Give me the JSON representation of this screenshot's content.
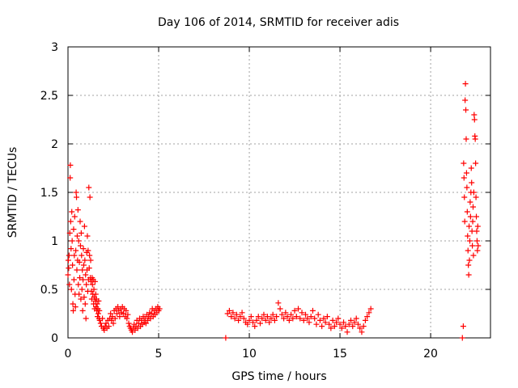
{
  "chart_data": {
    "type": "scatter",
    "title": "Day 106 of 2014, SRMTID for receiver adis",
    "xlabel": "GPS time / hours",
    "ylabel": "SRMTID / TECUs",
    "xlim": [
      0,
      23.3
    ],
    "ylim": [
      0,
      3
    ],
    "x_ticks": [
      0,
      5,
      10,
      15,
      20
    ],
    "y_ticks": [
      0,
      0.5,
      1,
      1.5,
      2,
      2.5,
      3
    ],
    "x_tick_labels": [
      "0",
      "5",
      "10",
      "15",
      "20"
    ],
    "y_tick_labels": [
      "0",
      "0.5",
      "1",
      "1.5",
      "2",
      "2.5",
      "3"
    ],
    "grid": true,
    "marker": "+",
    "marker_color": "#ff0000",
    "series": [
      {
        "name": "SRMTID",
        "points": [
          [
            0.0,
            0.65
          ],
          [
            0.02,
            0.8
          ],
          [
            0.04,
            0.72
          ],
          [
            0.06,
            0.85
          ],
          [
            0.08,
            0.55
          ],
          [
            0.1,
            1.08
          ],
          [
            0.12,
            1.65
          ],
          [
            0.13,
            1.78
          ],
          [
            0.15,
            1.2
          ],
          [
            0.17,
            0.92
          ],
          [
            0.19,
            0.5
          ],
          [
            0.21,
            1.3
          ],
          [
            0.23,
            1.0
          ],
          [
            0.25,
            0.75
          ],
          [
            0.27,
            0.35
          ],
          [
            0.29,
            0.28
          ],
          [
            0.31,
            1.12
          ],
          [
            0.33,
            0.6
          ],
          [
            0.35,
            0.85
          ],
          [
            0.37,
            1.25
          ],
          [
            0.39,
            0.45
          ],
          [
            0.41,
            0.32
          ],
          [
            0.43,
            0.9
          ],
          [
            0.45,
            1.5
          ],
          [
            0.47,
            1.45
          ],
          [
            0.49,
            0.7
          ],
          [
            0.51,
            1.05
          ],
          [
            0.53,
            0.8
          ],
          [
            0.55,
            1.32
          ],
          [
            0.57,
            0.55
          ],
          [
            0.59,
            1.0
          ],
          [
            0.61,
            0.45
          ],
          [
            0.63,
            0.78
          ],
          [
            0.65,
            0.62
          ],
          [
            0.67,
            1.2
          ],
          [
            0.69,
            0.95
          ],
          [
            0.71,
            0.4
          ],
          [
            0.73,
            1.08
          ],
          [
            0.75,
            0.85
          ],
          [
            0.77,
            0.5
          ],
          [
            0.79,
            0.7
          ],
          [
            0.81,
            0.28
          ],
          [
            0.83,
            0.6
          ],
          [
            0.85,
            0.92
          ],
          [
            0.87,
            0.75
          ],
          [
            0.89,
            0.42
          ],
          [
            0.91,
            1.15
          ],
          [
            0.93,
            0.8
          ],
          [
            0.95,
            0.35
          ],
          [
            0.97,
            0.65
          ],
          [
            0.99,
            0.2
          ],
          [
            1.01,
            0.55
          ],
          [
            1.03,
            0.88
          ],
          [
            1.05,
            0.7
          ],
          [
            1.07,
            1.05
          ],
          [
            1.09,
            0.48
          ],
          [
            1.11,
            0.9
          ],
          [
            1.13,
            0.6
          ],
          [
            1.15,
            1.55
          ],
          [
            1.17,
            0.72
          ],
          [
            1.19,
            0.85
          ],
          [
            1.21,
            1.45
          ],
          [
            1.23,
            0.62
          ],
          [
            1.25,
            0.8
          ],
          [
            1.27,
            0.58
          ],
          [
            1.29,
            0.48
          ],
          [
            1.31,
            0.4
          ],
          [
            1.33,
            0.62
          ],
          [
            1.35,
            0.55
          ],
          [
            1.37,
            0.45
          ],
          [
            1.39,
            0.6
          ],
          [
            1.41,
            0.35
          ],
          [
            1.43,
            0.5
          ],
          [
            1.45,
            0.42
          ],
          [
            1.47,
            0.3
          ],
          [
            1.49,
            0.58
          ],
          [
            1.51,
            0.38
          ],
          [
            1.53,
            0.45
          ],
          [
            1.55,
            0.32
          ],
          [
            1.57,
            0.4
          ],
          [
            1.59,
            0.28
          ],
          [
            1.61,
            0.35
          ],
          [
            1.63,
            0.22
          ],
          [
            1.65,
            0.3
          ],
          [
            1.67,
            0.25
          ],
          [
            1.69,
            0.38
          ],
          [
            1.71,
            0.2
          ],
          [
            1.73,
            0.28
          ],
          [
            1.75,
            0.18
          ],
          [
            1.8,
            0.15
          ],
          [
            1.85,
            0.12
          ],
          [
            1.9,
            0.2
          ],
          [
            1.95,
            0.1
          ],
          [
            2.0,
            0.08
          ],
          [
            2.05,
            0.12
          ],
          [
            2.1,
            0.15
          ],
          [
            2.15,
            0.1
          ],
          [
            2.2,
            0.18
          ],
          [
            2.25,
            0.12
          ],
          [
            2.3,
            0.2
          ],
          [
            2.35,
            0.25
          ],
          [
            2.4,
            0.18
          ],
          [
            2.45,
            0.22
          ],
          [
            2.5,
            0.15
          ],
          [
            2.55,
            0.28
          ],
          [
            2.6,
            0.2
          ],
          [
            2.65,
            0.3
          ],
          [
            2.7,
            0.25
          ],
          [
            2.75,
            0.32
          ],
          [
            2.8,
            0.28
          ],
          [
            2.85,
            0.22
          ],
          [
            2.9,
            0.3
          ],
          [
            2.95,
            0.26
          ],
          [
            3.0,
            0.32
          ],
          [
            3.05,
            0.25
          ],
          [
            3.1,
            0.3
          ],
          [
            3.15,
            0.22
          ],
          [
            3.2,
            0.28
          ],
          [
            3.25,
            0.2
          ],
          [
            3.3,
            0.24
          ],
          [
            3.35,
            0.15
          ],
          [
            3.4,
            0.12
          ],
          [
            3.45,
            0.1
          ],
          [
            3.5,
            0.08
          ],
          [
            3.55,
            0.06
          ],
          [
            3.6,
            0.1
          ],
          [
            3.65,
            0.14
          ],
          [
            3.7,
            0.08
          ],
          [
            3.75,
            0.12
          ],
          [
            3.8,
            0.18
          ],
          [
            3.85,
            0.1
          ],
          [
            3.9,
            0.15
          ],
          [
            3.95,
            0.2
          ],
          [
            4.0,
            0.12
          ],
          [
            4.05,
            0.18
          ],
          [
            4.1,
            0.14
          ],
          [
            4.15,
            0.22
          ],
          [
            4.2,
            0.16
          ],
          [
            4.25,
            0.2
          ],
          [
            4.3,
            0.15
          ],
          [
            4.35,
            0.24
          ],
          [
            4.4,
            0.18
          ],
          [
            4.45,
            0.22
          ],
          [
            4.5,
            0.26
          ],
          [
            4.55,
            0.2
          ],
          [
            4.6,
            0.25
          ],
          [
            4.65,
            0.3
          ],
          [
            4.7,
            0.22
          ],
          [
            4.75,
            0.28
          ],
          [
            4.8,
            0.24
          ],
          [
            4.85,
            0.3
          ],
          [
            4.9,
            0.26
          ],
          [
            4.95,
            0.32
          ],
          [
            5.0,
            0.28
          ],
          [
            5.05,
            0.3
          ],
          [
            8.7,
            0.0
          ],
          [
            8.8,
            0.25
          ],
          [
            8.9,
            0.28
          ],
          [
            9.0,
            0.22
          ],
          [
            9.1,
            0.26
          ],
          [
            9.2,
            0.2
          ],
          [
            9.3,
            0.24
          ],
          [
            9.4,
            0.18
          ],
          [
            9.5,
            0.22
          ],
          [
            9.6,
            0.26
          ],
          [
            9.7,
            0.2
          ],
          [
            9.8,
            0.16
          ],
          [
            9.9,
            0.14
          ],
          [
            10.0,
            0.18
          ],
          [
            10.1,
            0.22
          ],
          [
            10.2,
            0.16
          ],
          [
            10.3,
            0.12
          ],
          [
            10.4,
            0.18
          ],
          [
            10.5,
            0.22
          ],
          [
            10.6,
            0.15
          ],
          [
            10.7,
            0.2
          ],
          [
            10.8,
            0.24
          ],
          [
            10.9,
            0.18
          ],
          [
            11.0,
            0.22
          ],
          [
            11.1,
            0.16
          ],
          [
            11.2,
            0.2
          ],
          [
            11.3,
            0.24
          ],
          [
            11.4,
            0.18
          ],
          [
            11.5,
            0.22
          ],
          [
            11.6,
            0.36
          ],
          [
            11.7,
            0.3
          ],
          [
            11.8,
            0.24
          ],
          [
            11.9,
            0.2
          ],
          [
            12.0,
            0.26
          ],
          [
            12.1,
            0.22
          ],
          [
            12.2,
            0.18
          ],
          [
            12.3,
            0.24
          ],
          [
            12.4,
            0.2
          ],
          [
            12.5,
            0.28
          ],
          [
            12.6,
            0.22
          ],
          [
            12.7,
            0.3
          ],
          [
            12.8,
            0.2
          ],
          [
            12.9,
            0.26
          ],
          [
            13.0,
            0.18
          ],
          [
            13.1,
            0.24
          ],
          [
            13.2,
            0.2
          ],
          [
            13.3,
            0.16
          ],
          [
            13.4,
            0.22
          ],
          [
            13.5,
            0.28
          ],
          [
            13.6,
            0.2
          ],
          [
            13.7,
            0.14
          ],
          [
            13.8,
            0.24
          ],
          [
            13.9,
            0.18
          ],
          [
            14.0,
            0.12
          ],
          [
            14.1,
            0.2
          ],
          [
            14.2,
            0.16
          ],
          [
            14.3,
            0.22
          ],
          [
            14.4,
            0.14
          ],
          [
            14.5,
            0.1
          ],
          [
            14.6,
            0.18
          ],
          [
            14.7,
            0.12
          ],
          [
            14.8,
            0.16
          ],
          [
            14.9,
            0.2
          ],
          [
            15.0,
            0.14
          ],
          [
            15.1,
            0.1
          ],
          [
            15.2,
            0.16
          ],
          [
            15.3,
            0.12
          ],
          [
            15.4,
            0.06
          ],
          [
            15.5,
            0.14
          ],
          [
            15.6,
            0.18
          ],
          [
            15.7,
            0.12
          ],
          [
            15.8,
            0.16
          ],
          [
            15.9,
            0.2
          ],
          [
            16.0,
            0.14
          ],
          [
            16.1,
            0.1
          ],
          [
            16.2,
            0.06
          ],
          [
            16.3,
            0.12
          ],
          [
            16.4,
            0.18
          ],
          [
            16.5,
            0.22
          ],
          [
            16.6,
            0.26
          ],
          [
            16.7,
            0.3
          ],
          [
            21.75,
            0.0
          ],
          [
            21.8,
            0.12
          ],
          [
            21.82,
            1.8
          ],
          [
            21.84,
            1.65
          ],
          [
            21.86,
            1.45
          ],
          [
            21.88,
            1.2
          ],
          [
            21.9,
            2.45
          ],
          [
            21.92,
            2.62
          ],
          [
            21.94,
            2.35
          ],
          [
            21.96,
            2.05
          ],
          [
            21.98,
            1.7
          ],
          [
            22.0,
            1.55
          ],
          [
            22.02,
            1.3
          ],
          [
            22.04,
            1.05
          ],
          [
            22.06,
            0.9
          ],
          [
            22.08,
            0.75
          ],
          [
            22.1,
            0.65
          ],
          [
            22.12,
            1.15
          ],
          [
            22.14,
            0.8
          ],
          [
            22.16,
            1.0
          ],
          [
            22.18,
            1.4
          ],
          [
            22.2,
            1.25
          ],
          [
            22.22,
            1.5
          ],
          [
            22.24,
            1.75
          ],
          [
            22.26,
            1.6
          ],
          [
            22.28,
            1.1
          ],
          [
            22.3,
            0.95
          ],
          [
            22.32,
            1.2
          ],
          [
            22.34,
            1.35
          ],
          [
            22.36,
            0.85
          ],
          [
            22.38,
            1.5
          ],
          [
            22.4,
            2.3
          ],
          [
            22.42,
            2.25
          ],
          [
            22.44,
            2.08
          ],
          [
            22.46,
            2.05
          ],
          [
            22.48,
            1.8
          ],
          [
            22.5,
            1.45
          ],
          [
            22.52,
            1.25
          ],
          [
            22.54,
            1.1
          ],
          [
            22.56,
            1.0
          ],
          [
            22.58,
            0.9
          ],
          [
            22.6,
            1.15
          ],
          [
            22.62,
            0.95
          ]
        ]
      }
    ]
  }
}
